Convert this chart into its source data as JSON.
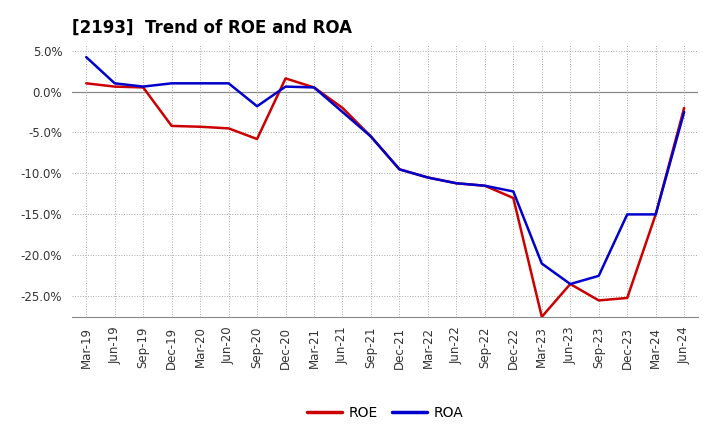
{
  "title": "[2193]  Trend of ROE and ROA",
  "x_labels": [
    "Mar-19",
    "Jun-19",
    "Sep-19",
    "Dec-19",
    "Mar-20",
    "Jun-20",
    "Sep-20",
    "Dec-20",
    "Mar-21",
    "Jun-21",
    "Sep-21",
    "Dec-21",
    "Mar-22",
    "Jun-22",
    "Sep-22",
    "Dec-22",
    "Mar-23",
    "Jun-23",
    "Sep-23",
    "Dec-23",
    "Mar-24",
    "Jun-24"
  ],
  "roe": [
    1.0,
    0.6,
    0.5,
    -4.2,
    -4.3,
    -4.5,
    -5.8,
    1.6,
    0.5,
    -2.0,
    -5.5,
    -9.5,
    -10.5,
    -11.2,
    -11.5,
    -13.0,
    -27.5,
    -23.5,
    -25.5,
    -25.2,
    -15.0,
    -2.0
  ],
  "roa": [
    4.2,
    1.0,
    0.6,
    1.0,
    1.0,
    1.0,
    -1.8,
    0.6,
    0.5,
    -2.5,
    -5.5,
    -9.5,
    -10.5,
    -11.2,
    -11.5,
    -12.2,
    -21.0,
    -23.5,
    -22.5,
    -15.0,
    -15.0,
    -2.5
  ],
  "roe_color": "#cc0000",
  "roa_color": "#0000cc",
  "ylim": [
    -27.5,
    5.8
  ],
  "yticks": [
    5.0,
    0.0,
    -5.0,
    -10.0,
    -15.0,
    -20.0,
    -25.0
  ],
  "background_color": "#ffffff",
  "plot_bg_color": "#ffffff",
  "grid_color": "#aaaaaa",
  "line_width": 1.8,
  "title_fontsize": 12,
  "tick_fontsize": 8.5,
  "legend_fontsize": 10
}
